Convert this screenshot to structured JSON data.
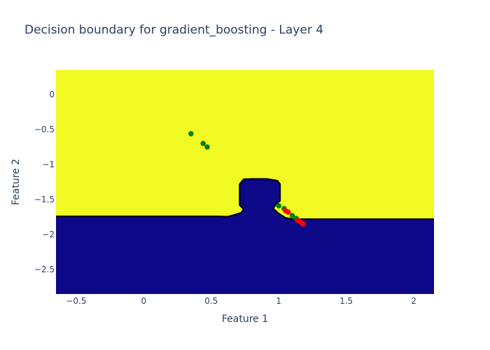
{
  "chart_data": {
    "type": "scatter",
    "title": "Decision boundary for gradient_boosting - Layer 4",
    "xlabel": "Feature 1",
    "ylabel": "Feature 2",
    "xlim": [
      -0.65,
      2.15
    ],
    "ylim": [
      -2.85,
      0.35
    ],
    "x_ticks": [
      -0.5,
      0,
      0.5,
      1,
      1.5,
      2
    ],
    "x_tick_labels": [
      "−0.5",
      "0",
      "0.5",
      "1",
      "1.5",
      "2"
    ],
    "y_ticks": [
      0,
      -0.5,
      -1,
      -1.5,
      -2,
      -2.5
    ],
    "y_tick_labels": [
      "0",
      "−0.5",
      "−1",
      "−1.5",
      "−2",
      "−2.5"
    ],
    "grid": false,
    "regions": {
      "upper_color": "#f0f921",
      "lower_color": "#0d0887",
      "boundary_color": "#000000",
      "boundary": [
        [
          -0.65,
          -1.74
        ],
        [
          0.55,
          -1.74
        ],
        [
          0.62,
          -1.745
        ],
        [
          0.67,
          -1.72
        ],
        [
          0.72,
          -1.69
        ],
        [
          0.74,
          -1.64
        ],
        [
          0.71,
          -1.58
        ],
        [
          0.71,
          -1.28
        ],
        [
          0.74,
          -1.21
        ],
        [
          0.8,
          -1.205
        ],
        [
          0.85,
          -1.205
        ],
        [
          0.91,
          -1.205
        ],
        [
          0.99,
          -1.23
        ],
        [
          1.01,
          -1.28
        ],
        [
          1.01,
          -1.52
        ],
        [
          0.98,
          -1.56
        ],
        [
          0.96,
          -1.63
        ],
        [
          1.0,
          -1.7
        ],
        [
          1.05,
          -1.76
        ],
        [
          1.1,
          -1.78
        ],
        [
          1.2,
          -1.78
        ],
        [
          2.15,
          -1.78
        ]
      ]
    },
    "series": [
      {
        "color": "#008000",
        "points": [
          [
            0.35,
            -0.56
          ],
          [
            0.44,
            -0.7
          ],
          [
            0.47,
            -0.75
          ],
          [
            1.0,
            -1.59
          ],
          [
            1.04,
            -1.63
          ],
          [
            1.1,
            -1.73
          ],
          [
            1.13,
            -1.77
          ]
        ]
      },
      {
        "color": "#ff0000",
        "points": [
          [
            1.05,
            -1.66
          ],
          [
            1.07,
            -1.68
          ],
          [
            1.14,
            -1.8
          ],
          [
            1.16,
            -1.82
          ],
          [
            1.18,
            -1.85
          ]
        ]
      }
    ]
  }
}
